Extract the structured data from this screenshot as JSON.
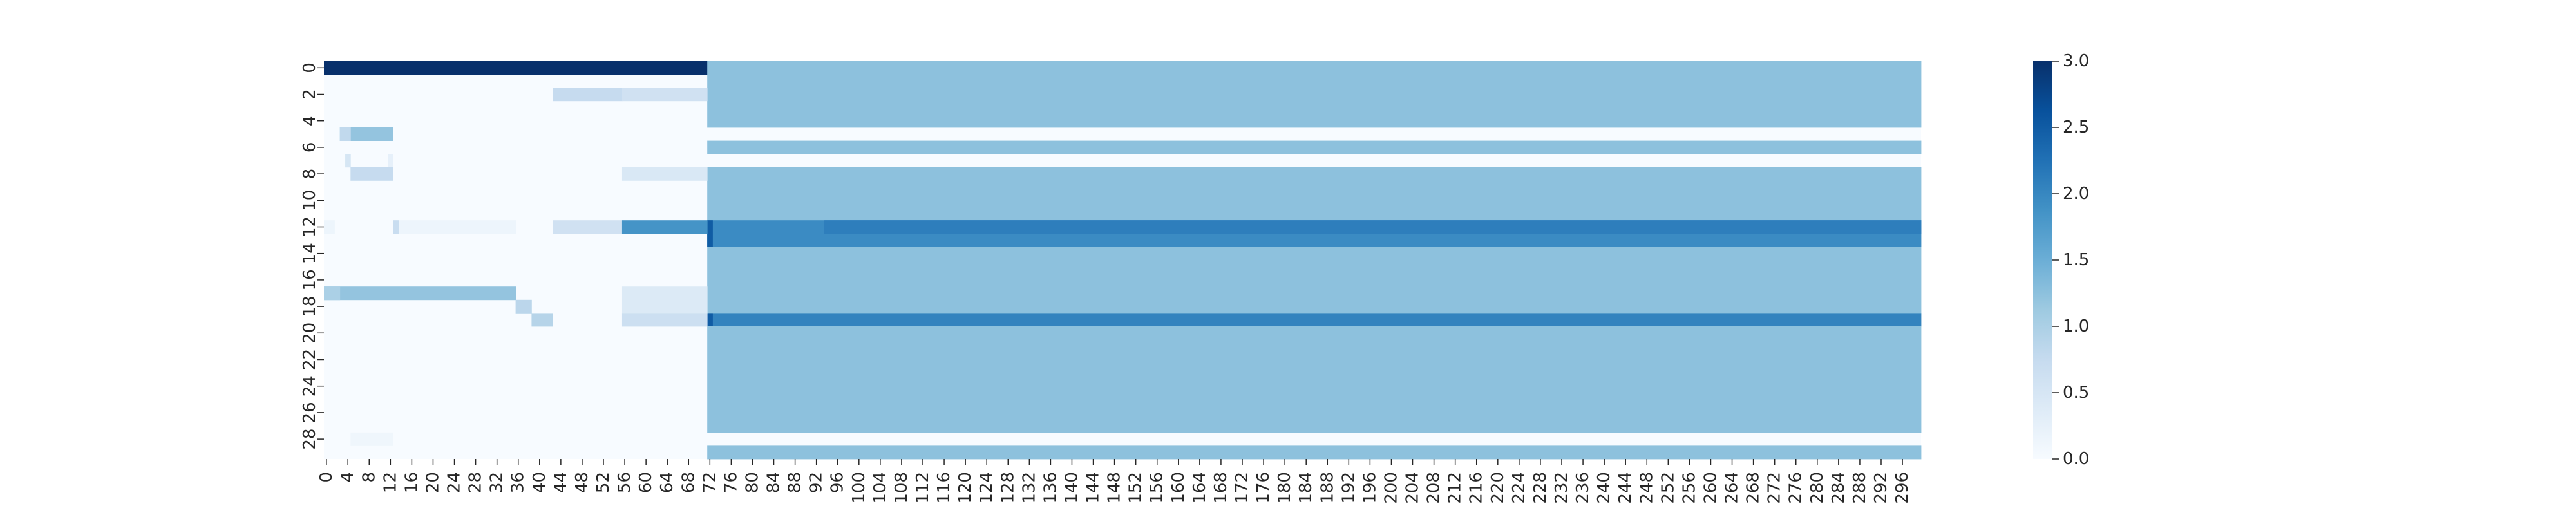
{
  "chart_data": {
    "type": "heatmap",
    "title": "",
    "xlabel": "",
    "ylabel": "",
    "n_rows": 30,
    "n_cols": 300,
    "x_tick_labels": [
      "0",
      "4",
      "8",
      "12",
      "16",
      "20",
      "24",
      "28",
      "32",
      "36",
      "40",
      "44",
      "48",
      "52",
      "56",
      "60",
      "64",
      "68",
      "72",
      "76",
      "80",
      "84",
      "88",
      "92",
      "96",
      "100",
      "104",
      "108",
      "112",
      "116",
      "120",
      "124",
      "128",
      "132",
      "136",
      "140",
      "144",
      "148",
      "152",
      "156",
      "160",
      "164",
      "168",
      "172",
      "176",
      "180",
      "184",
      "188",
      "192",
      "196",
      "200",
      "204",
      "208",
      "212",
      "216",
      "220",
      "224",
      "228",
      "232",
      "236",
      "240",
      "244",
      "248",
      "252",
      "256",
      "260",
      "264",
      "268",
      "272",
      "276",
      "280",
      "284",
      "288",
      "292",
      "296"
    ],
    "y_tick_labels": [
      "0",
      "2",
      "4",
      "6",
      "8",
      "10",
      "12",
      "14",
      "16",
      "18",
      "20",
      "22",
      "24",
      "26",
      "28"
    ],
    "colorbar": {
      "min": 0.0,
      "max": 3.0,
      "ticks": [
        "0.0",
        "0.5",
        "1.0",
        "1.5",
        "2.0",
        "2.5",
        "3.0"
      ],
      "colormap": "Blues"
    },
    "colormap_stops": [
      "#f7fbff",
      "#deebf7",
      "#c6dbef",
      "#9ecae1",
      "#6baed6",
      "#4292c6",
      "#2171b5",
      "#08519c",
      "#08306b"
    ],
    "segments": [
      {
        "rows": [
          0,
          0
        ],
        "cols": [
          0,
          71
        ],
        "value": 3.0
      },
      {
        "rows": [
          0,
          4
        ],
        "cols": [
          72,
          299
        ],
        "value": 1.25
      },
      {
        "rows": [
          6,
          6
        ],
        "cols": [
          72,
          299
        ],
        "value": 1.25
      },
      {
        "rows": [
          8,
          11
        ],
        "cols": [
          72,
          299
        ],
        "value": 1.25
      },
      {
        "rows": [
          12,
          13
        ],
        "cols": [
          72,
          299
        ],
        "value": 1.95
      },
      {
        "rows": [
          12,
          12
        ],
        "cols": [
          94,
          299
        ],
        "value": 2.1
      },
      {
        "rows": [
          12,
          13
        ],
        "cols": [
          72,
          72
        ],
        "value": 2.5
      },
      {
        "rows": [
          14,
          18
        ],
        "cols": [
          72,
          299
        ],
        "value": 1.25
      },
      {
        "rows": [
          19,
          19
        ],
        "cols": [
          72,
          299
        ],
        "value": 2.05
      },
      {
        "rows": [
          19,
          19
        ],
        "cols": [
          72,
          72
        ],
        "value": 2.5
      },
      {
        "rows": [
          20,
          27
        ],
        "cols": [
          72,
          299
        ],
        "value": 1.25
      },
      {
        "rows": [
          29,
          29
        ],
        "cols": [
          72,
          299
        ],
        "value": 1.25
      },
      {
        "rows": [
          2,
          2
        ],
        "cols": [
          43,
          55
        ],
        "value": 0.75
      },
      {
        "rows": [
          2,
          2
        ],
        "cols": [
          56,
          71
        ],
        "value": 0.6
      },
      {
        "rows": [
          5,
          5
        ],
        "cols": [
          3,
          12
        ],
        "value": 1.2
      },
      {
        "rows": [
          5,
          5
        ],
        "cols": [
          3,
          4
        ],
        "value": 0.8
      },
      {
        "rows": [
          7,
          7
        ],
        "cols": [
          4,
          4
        ],
        "value": 0.5
      },
      {
        "rows": [
          7,
          7
        ],
        "cols": [
          12,
          12
        ],
        "value": 0.25
      },
      {
        "rows": [
          8,
          8
        ],
        "cols": [
          5,
          12
        ],
        "value": 0.75
      },
      {
        "rows": [
          8,
          8
        ],
        "cols": [
          56,
          71
        ],
        "value": 0.45
      },
      {
        "rows": [
          12,
          12
        ],
        "cols": [
          0,
          1
        ],
        "value": 0.15
      },
      {
        "rows": [
          12,
          12
        ],
        "cols": [
          13,
          35
        ],
        "value": 0.15
      },
      {
        "rows": [
          12,
          12
        ],
        "cols": [
          13,
          13
        ],
        "value": 0.7
      },
      {
        "rows": [
          12,
          12
        ],
        "cols": [
          43,
          55
        ],
        "value": 0.6
      },
      {
        "rows": [
          12,
          12
        ],
        "cols": [
          56,
          71
        ],
        "value": 1.85
      },
      {
        "rows": [
          17,
          17
        ],
        "cols": [
          0,
          35
        ],
        "value": 1.2
      },
      {
        "rows": [
          17,
          17
        ],
        "cols": [
          0,
          2
        ],
        "value": 1.0
      },
      {
        "rows": [
          17,
          18
        ],
        "cols": [
          56,
          71
        ],
        "value": 0.4
      },
      {
        "rows": [
          18,
          18
        ],
        "cols": [
          36,
          38
        ],
        "value": 0.85
      },
      {
        "rows": [
          19,
          19
        ],
        "cols": [
          39,
          42
        ],
        "value": 0.9
      },
      {
        "rows": [
          19,
          19
        ],
        "cols": [
          56,
          71
        ],
        "value": 0.65
      },
      {
        "rows": [
          28,
          28
        ],
        "cols": [
          5,
          12
        ],
        "value": 0.12
      }
    ]
  }
}
